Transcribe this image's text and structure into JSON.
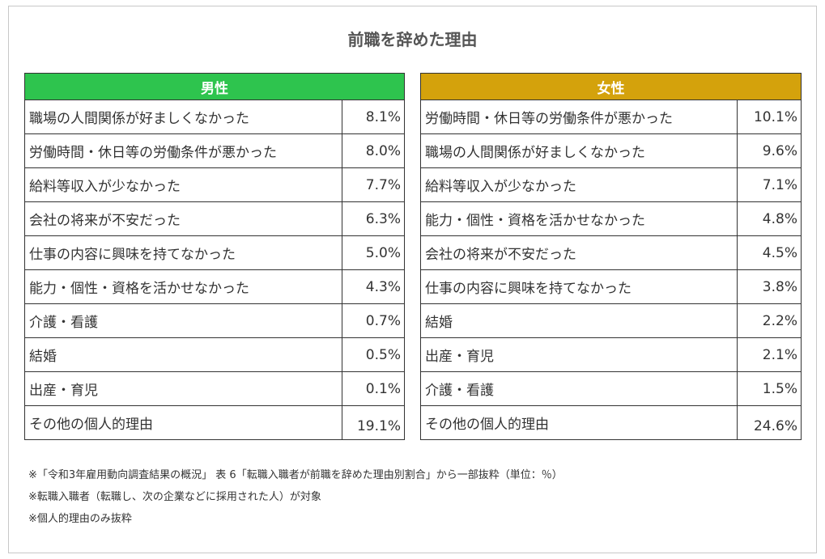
{
  "title": "前職を辞めた理由",
  "chart_data": {
    "type": "table",
    "tables": [
      {
        "header": "男性",
        "color": "#2ec44e",
        "rows": [
          {
            "reason": "職場の人間関係が好ましくなかった",
            "value": "8.1%"
          },
          {
            "reason": "労働時間・休日等の労働条件が悪かった",
            "value": "8.0%"
          },
          {
            "reason": "給料等収入が少なかった",
            "value": "7.7%"
          },
          {
            "reason": "会社の将来が不安だった",
            "value": "6.3%"
          },
          {
            "reason": "仕事の内容に興味を持てなかった",
            "value": "5.0%"
          },
          {
            "reason": "能力・個性・資格を活かせなかった",
            "value": "4.3%"
          },
          {
            "reason": "介護・看護",
            "value": "0.7%"
          },
          {
            "reason": "結婚",
            "value": "0.5%"
          },
          {
            "reason": "出産・育児",
            "value": "0.1%"
          },
          {
            "reason": "その他の個人的理由",
            "value": "19.1%"
          }
        ]
      },
      {
        "header": "女性",
        "color": "#d4a20c",
        "rows": [
          {
            "reason": "労働時間・休日等の労働条件が悪かった",
            "value": "10.1%"
          },
          {
            "reason": "職場の人間関係が好ましくなかった",
            "value": "9.6%"
          },
          {
            "reason": "給料等収入が少なかった",
            "value": "7.1%"
          },
          {
            "reason": "能力・個性・資格を活かせなかった",
            "value": "4.8%"
          },
          {
            "reason": "会社の将来が不安だった",
            "value": "4.5%"
          },
          {
            "reason": "仕事の内容に興味を持てなかった",
            "value": "3.8%"
          },
          {
            "reason": "結婚",
            "value": "2.2%"
          },
          {
            "reason": "出産・育児",
            "value": "2.1%"
          },
          {
            "reason": "介護・看護",
            "value": "1.5%"
          },
          {
            "reason": "その他の個人的理由",
            "value": "24.6%"
          }
        ]
      }
    ]
  },
  "notes": [
    "※「令和3年雇用動向調査結果の概況」 表 6「転職入職者が前職を辞めた理由別割合」から一部抜粋（単位：％）",
    "※転職入職者（転職し、次の企業などに採用された人）が対象",
    "※個人的理由のみ抜粋"
  ]
}
